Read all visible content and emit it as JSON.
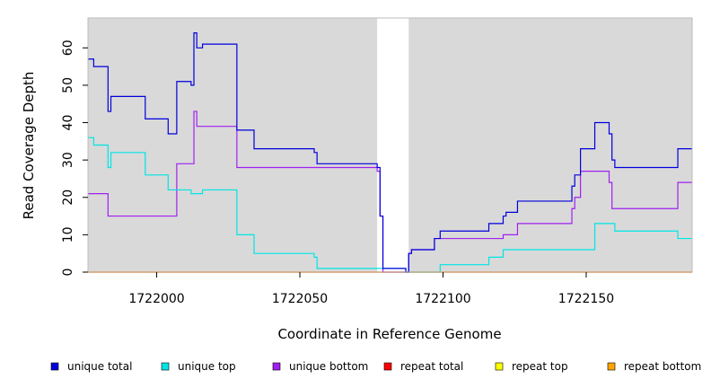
{
  "chart_data": {
    "type": "line",
    "title": "",
    "xlabel": "Coordinate in Reference Genome",
    "ylabel": "Read Coverage Depth",
    "xlim": [
      1721976,
      1722187
    ],
    "ylim": [
      0,
      68
    ],
    "xticks": [
      1722000,
      1722050,
      1722100,
      1722150
    ],
    "yticks": [
      0,
      10,
      20,
      30,
      40,
      50,
      60
    ],
    "grid": false,
    "background": "#d9d9d9",
    "legend_position": "bottom",
    "gap": [
      1722077,
      1722088
    ],
    "series": [
      {
        "name": "unique total",
        "color": "#0000dd",
        "points": [
          [
            1721976,
            57
          ],
          [
            1721978,
            57
          ],
          [
            1721978,
            55
          ],
          [
            1721983,
            55
          ],
          [
            1721983,
            43
          ],
          [
            1721984,
            43
          ],
          [
            1721984,
            47
          ],
          [
            1721996,
            47
          ],
          [
            1721996,
            41
          ],
          [
            1722004,
            41
          ],
          [
            1722004,
            37
          ],
          [
            1722007,
            37
          ],
          [
            1722007,
            51
          ],
          [
            1722012,
            51
          ],
          [
            1722012,
            50
          ],
          [
            1722013,
            50
          ],
          [
            1722013,
            64
          ],
          [
            1722014,
            64
          ],
          [
            1722014,
            60
          ],
          [
            1722016,
            60
          ],
          [
            1722016,
            61
          ],
          [
            1722028,
            61
          ],
          [
            1722028,
            38
          ],
          [
            1722034,
            38
          ],
          [
            1722034,
            33
          ],
          [
            1722055,
            33
          ],
          [
            1722055,
            32
          ],
          [
            1722056,
            32
          ],
          [
            1722056,
            29
          ],
          [
            1722077,
            29
          ],
          [
            1722077,
            28
          ],
          [
            1722078,
            28
          ],
          [
            1722078,
            15
          ],
          [
            1722079,
            15
          ],
          [
            1722079,
            1
          ],
          [
            1722087,
            1
          ],
          [
            1722087,
            0
          ],
          [
            1722088,
            0
          ],
          [
            1722088,
            5
          ],
          [
            1722089,
            5
          ],
          [
            1722089,
            6
          ],
          [
            1722097,
            6
          ],
          [
            1722097,
            9
          ],
          [
            1722099,
            9
          ],
          [
            1722099,
            11
          ],
          [
            1722116,
            11
          ],
          [
            1722116,
            13
          ],
          [
            1722121,
            13
          ],
          [
            1722121,
            15
          ],
          [
            1722122,
            15
          ],
          [
            1722122,
            16
          ],
          [
            1722126,
            16
          ],
          [
            1722126,
            19
          ],
          [
            1722145,
            19
          ],
          [
            1722145,
            23
          ],
          [
            1722146,
            23
          ],
          [
            1722146,
            26
          ],
          [
            1722148,
            26
          ],
          [
            1722148,
            33
          ],
          [
            1722153,
            33
          ],
          [
            1722153,
            40
          ],
          [
            1722158,
            40
          ],
          [
            1722158,
            37
          ],
          [
            1722159,
            37
          ],
          [
            1722159,
            30
          ],
          [
            1722160,
            30
          ],
          [
            1722160,
            28
          ],
          [
            1722182,
            28
          ],
          [
            1722182,
            33
          ],
          [
            1722187,
            33
          ]
        ]
      },
      {
        "name": "unique top",
        "color": "#00e5e5",
        "points": [
          [
            1721976,
            36
          ],
          [
            1721978,
            36
          ],
          [
            1721978,
            34
          ],
          [
            1721983,
            34
          ],
          [
            1721983,
            28
          ],
          [
            1721984,
            28
          ],
          [
            1721984,
            32
          ],
          [
            1721996,
            32
          ],
          [
            1721996,
            26
          ],
          [
            1722004,
            26
          ],
          [
            1722004,
            22
          ],
          [
            1722012,
            22
          ],
          [
            1722012,
            21
          ],
          [
            1722016,
            21
          ],
          [
            1722016,
            22
          ],
          [
            1722028,
            22
          ],
          [
            1722028,
            10
          ],
          [
            1722034,
            10
          ],
          [
            1722034,
            5
          ],
          [
            1722055,
            5
          ],
          [
            1722055,
            4
          ],
          [
            1722056,
            4
          ],
          [
            1722056,
            1
          ],
          [
            1722087,
            1
          ],
          [
            1722087,
            0
          ],
          [
            1722099,
            0
          ],
          [
            1722099,
            2
          ],
          [
            1722116,
            2
          ],
          [
            1722116,
            4
          ],
          [
            1722121,
            4
          ],
          [
            1722121,
            6
          ],
          [
            1722153,
            6
          ],
          [
            1722153,
            13
          ],
          [
            1722160,
            13
          ],
          [
            1722160,
            11
          ],
          [
            1722182,
            11
          ],
          [
            1722182,
            9
          ],
          [
            1722187,
            9
          ]
        ]
      },
      {
        "name": "unique bottom",
        "color": "#a020f0",
        "points": [
          [
            1721976,
            21
          ],
          [
            1721983,
            21
          ],
          [
            1721983,
            15
          ],
          [
            1722007,
            15
          ],
          [
            1722007,
            29
          ],
          [
            1722013,
            29
          ],
          [
            1722013,
            43
          ],
          [
            1722014,
            43
          ],
          [
            1722014,
            39
          ],
          [
            1722028,
            39
          ],
          [
            1722028,
            28
          ],
          [
            1722077,
            28
          ],
          [
            1722077,
            27
          ],
          [
            1722078,
            27
          ],
          [
            1722078,
            15
          ],
          [
            1722079,
            15
          ],
          [
            1722079,
            0
          ],
          [
            1722088,
            0
          ],
          [
            1722088,
            5
          ],
          [
            1722089,
            5
          ],
          [
            1722089,
            6
          ],
          [
            1722097,
            6
          ],
          [
            1722097,
            9
          ],
          [
            1722121,
            9
          ],
          [
            1722121,
            10
          ],
          [
            1722126,
            10
          ],
          [
            1722126,
            13
          ],
          [
            1722145,
            13
          ],
          [
            1722145,
            17
          ],
          [
            1722146,
            17
          ],
          [
            1722146,
            20
          ],
          [
            1722148,
            20
          ],
          [
            1722148,
            27
          ],
          [
            1722158,
            27
          ],
          [
            1722158,
            24
          ],
          [
            1722159,
            24
          ],
          [
            1722159,
            17
          ],
          [
            1722182,
            17
          ],
          [
            1722182,
            24
          ],
          [
            1722187,
            24
          ]
        ]
      },
      {
        "name": "repeat total",
        "color": "#ff0000",
        "points": [
          [
            1721976,
            0
          ],
          [
            1722187,
            0
          ]
        ]
      },
      {
        "name": "repeat top",
        "color": "#ffff00",
        "points": [
          [
            1721976,
            0
          ],
          [
            1722187,
            0
          ]
        ]
      },
      {
        "name": "repeat bottom",
        "color": "#ffa500",
        "points": [
          [
            1721976,
            0
          ],
          [
            1722187,
            0
          ]
        ]
      }
    ]
  }
}
